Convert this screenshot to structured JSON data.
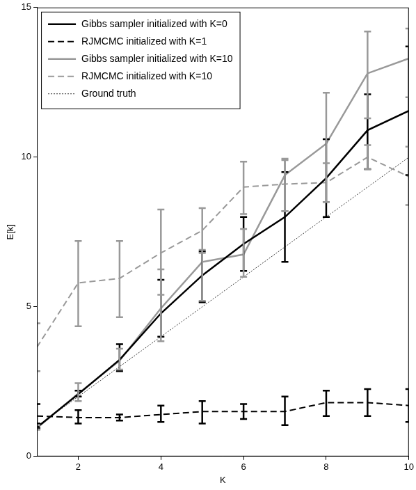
{
  "chart_data": {
    "type": "line",
    "x_label": "K",
    "y_label": "E[k]",
    "x": [
      1,
      2,
      3,
      4,
      5,
      6,
      7,
      8,
      9,
      10
    ],
    "xlim": [
      1,
      10
    ],
    "xticks": [
      2,
      4,
      6,
      8,
      10
    ],
    "ylim": [
      0,
      15
    ],
    "yticks": [
      0,
      5,
      10,
      15
    ],
    "grid": false,
    "legend": "upper left",
    "series": [
      {
        "name": "Gibbs sampler initialized with K=0",
        "color": "#000000",
        "line_style": "solid",
        "values": [
          0.97,
          2.08,
          3.23,
          4.78,
          6.05,
          7.1,
          8.0,
          9.3,
          10.9,
          11.55
        ],
        "error_low": [
          0.9,
          2.0,
          2.85,
          4.0,
          5.15,
          6.2,
          6.5,
          8.0,
          9.6,
          9.4
        ],
        "error_high": [
          1.1,
          2.2,
          3.75,
          5.9,
          6.85,
          8.0,
          9.5,
          10.6,
          12.1,
          13.7
        ]
      },
      {
        "name": "RJMCMC initialized with K=1",
        "color": "#000000",
        "line_style": "dashed",
        "values": [
          1.35,
          1.3,
          1.3,
          1.4,
          1.5,
          1.5,
          1.5,
          1.8,
          1.8,
          1.7
        ],
        "error_low": [
          0.95,
          1.1,
          1.2,
          1.15,
          1.1,
          1.25,
          1.05,
          1.35,
          1.35,
          1.15
        ],
        "error_high": [
          1.75,
          1.55,
          1.4,
          1.7,
          1.85,
          1.75,
          2.0,
          2.2,
          2.25,
          2.25
        ]
      },
      {
        "name": "Gibbs sampler initialized with K=10",
        "color": "#999999",
        "line_style": "solid",
        "values": [
          0.95,
          2.1,
          3.2,
          4.95,
          6.5,
          6.75,
          9.4,
          10.45,
          12.8,
          13.3
        ],
        "error_low": [
          0.9,
          1.85,
          2.9,
          3.85,
          5.2,
          6.0,
          8.2,
          8.5,
          11.3,
          12.0
        ],
        "error_high": [
          1.05,
          2.45,
          3.6,
          6.25,
          6.9,
          7.6,
          9.95,
          12.15,
          14.2,
          14.3
        ]
      },
      {
        "name": "RJMCMC initialized with K=10",
        "color": "#999999",
        "line_style": "dashed",
        "values": [
          3.65,
          5.8,
          5.95,
          6.8,
          7.55,
          9.0,
          9.1,
          9.15,
          10.0,
          9.35
        ],
        "error_low": [
          2.85,
          4.35,
          4.65,
          5.4,
          6.8,
          8.1,
          8.2,
          8.5,
          9.6,
          8.4
        ],
        "error_high": [
          4.45,
          7.2,
          7.2,
          8.25,
          8.3,
          9.85,
          9.9,
          9.8,
          10.4,
          10.35
        ]
      },
      {
        "name": "Ground truth",
        "color": "#000000",
        "line_style": "dotted",
        "values": [
          1,
          2,
          3,
          4,
          5,
          6,
          7,
          8,
          9,
          10
        ]
      }
    ]
  }
}
